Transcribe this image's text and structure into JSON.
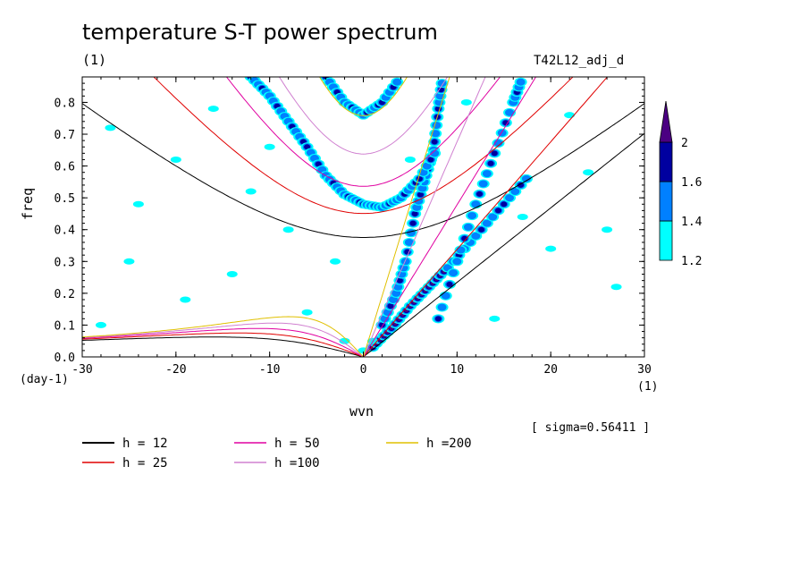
{
  "title": "temperature S-T power spectrum",
  "unit_top": "(1)",
  "run_name": "T42L12_adj_d",
  "sigma_text": "[ sigma=0.56411 ]",
  "x_unit": "(1)",
  "y_unit": "(day-1)",
  "colors": {
    "level_1_2": "#00ffff",
    "level_1_4": "#0080ff",
    "level_1_6": "#0000a0",
    "level_2": "#4b0082",
    "h12": "#000000",
    "h25": "#e00000",
    "h50": "#e000a0",
    "h100": "#d080d0",
    "h200": "#e0c000"
  },
  "chart_data": {
    "type": "heatmap",
    "title": "temperature S-T power spectrum",
    "xlabel": "wvn",
    "ylabel": "freq",
    "xlim": [
      -30,
      30
    ],
    "ylim": [
      0,
      0.88
    ],
    "x_ticks": [
      -30,
      -20,
      -10,
      0,
      10,
      20,
      30
    ],
    "y_ticks": [
      0.0,
      0.1,
      0.2,
      0.3,
      0.4,
      0.5,
      0.6,
      0.7,
      0.8
    ],
    "x_tick_labels": [
      "-30",
      "-20",
      "-10",
      "0",
      "10",
      "20",
      "30"
    ],
    "y_tick_labels": [
      "0.0",
      "0.1",
      "0.2",
      "0.3",
      "0.4",
      "0.5",
      "0.6",
      "0.7",
      "0.8"
    ],
    "colorbar": {
      "levels": [
        1.2,
        1.4,
        1.6,
        2
      ],
      "labels": [
        "1.2",
        "1.4",
        "1.6",
        "2"
      ],
      "colors": [
        "#00ffff",
        "#0080ff",
        "#0000a0",
        "#4b0082"
      ]
    },
    "dispersion_curves": [
      {
        "name": "h = 12",
        "h": 12,
        "color": "#000000"
      },
      {
        "name": "h = 25",
        "h": 25,
        "color": "#e00000"
      },
      {
        "name": "h = 50",
        "h": 50,
        "color": "#e000a0"
      },
      {
        "name": "h =100",
        "h": 100,
        "color": "#d080d0"
      },
      {
        "name": "h =200",
        "h": 200,
        "color": "#e0c000"
      }
    ],
    "power_ridges": [
      {
        "points": [
          [
            1,
            0.03
          ],
          [
            3,
            0.09
          ],
          [
            5,
            0.16
          ],
          [
            7,
            0.22
          ],
          [
            9,
            0.28
          ],
          [
            12,
            0.38
          ],
          [
            15,
            0.48
          ],
          [
            18,
            0.58
          ]
        ]
      },
      {
        "points": [
          [
            2,
            0.1
          ],
          [
            3.5,
            0.2
          ],
          [
            4.5,
            0.3
          ],
          [
            5.5,
            0.45
          ],
          [
            6.5,
            0.55
          ],
          [
            7.5,
            0.65
          ],
          [
            8,
            0.78
          ],
          [
            8.5,
            0.88
          ]
        ]
      },
      {
        "points": [
          [
            8,
            0.12
          ],
          [
            10,
            0.3
          ],
          [
            12,
            0.48
          ],
          [
            14,
            0.64
          ],
          [
            16,
            0.8
          ],
          [
            17,
            0.88
          ]
        ]
      },
      {
        "points": [
          [
            -12,
            0.88
          ],
          [
            -10,
            0.82
          ],
          [
            -8,
            0.74
          ],
          [
            -6,
            0.66
          ],
          [
            -4,
            0.57
          ],
          [
            -2,
            0.51
          ],
          [
            0,
            0.48
          ],
          [
            2,
            0.47
          ],
          [
            4,
            0.5
          ],
          [
            6,
            0.56
          ],
          [
            8,
            0.66
          ]
        ]
      },
      {
        "points": [
          [
            -4,
            0.88
          ],
          [
            -2,
            0.8
          ],
          [
            0,
            0.76
          ],
          [
            2,
            0.8
          ],
          [
            4,
            0.88
          ]
        ]
      }
    ],
    "scattered_patches": [
      [
        -27,
        0.72
      ],
      [
        -24,
        0.48
      ],
      [
        -20,
        0.62
      ],
      [
        -16,
        0.78
      ],
      [
        -12,
        0.52
      ],
      [
        -8,
        0.4
      ],
      [
        -25,
        0.3
      ],
      [
        -19,
        0.18
      ],
      [
        -14,
        0.26
      ],
      [
        -6,
        0.14
      ],
      [
        -3,
        0.3
      ],
      [
        5,
        0.62
      ],
      [
        14,
        0.12
      ],
      [
        20,
        0.34
      ],
      [
        24,
        0.58
      ],
      [
        27,
        0.22
      ],
      [
        22,
        0.76
      ],
      [
        -28,
        0.1
      ],
      [
        -2,
        0.05
      ],
      [
        0,
        0.02
      ],
      [
        1,
        0.05
      ],
      [
        17,
        0.44
      ],
      [
        26,
        0.4
      ],
      [
        -10,
        0.66
      ],
      [
        11,
        0.8
      ]
    ]
  }
}
